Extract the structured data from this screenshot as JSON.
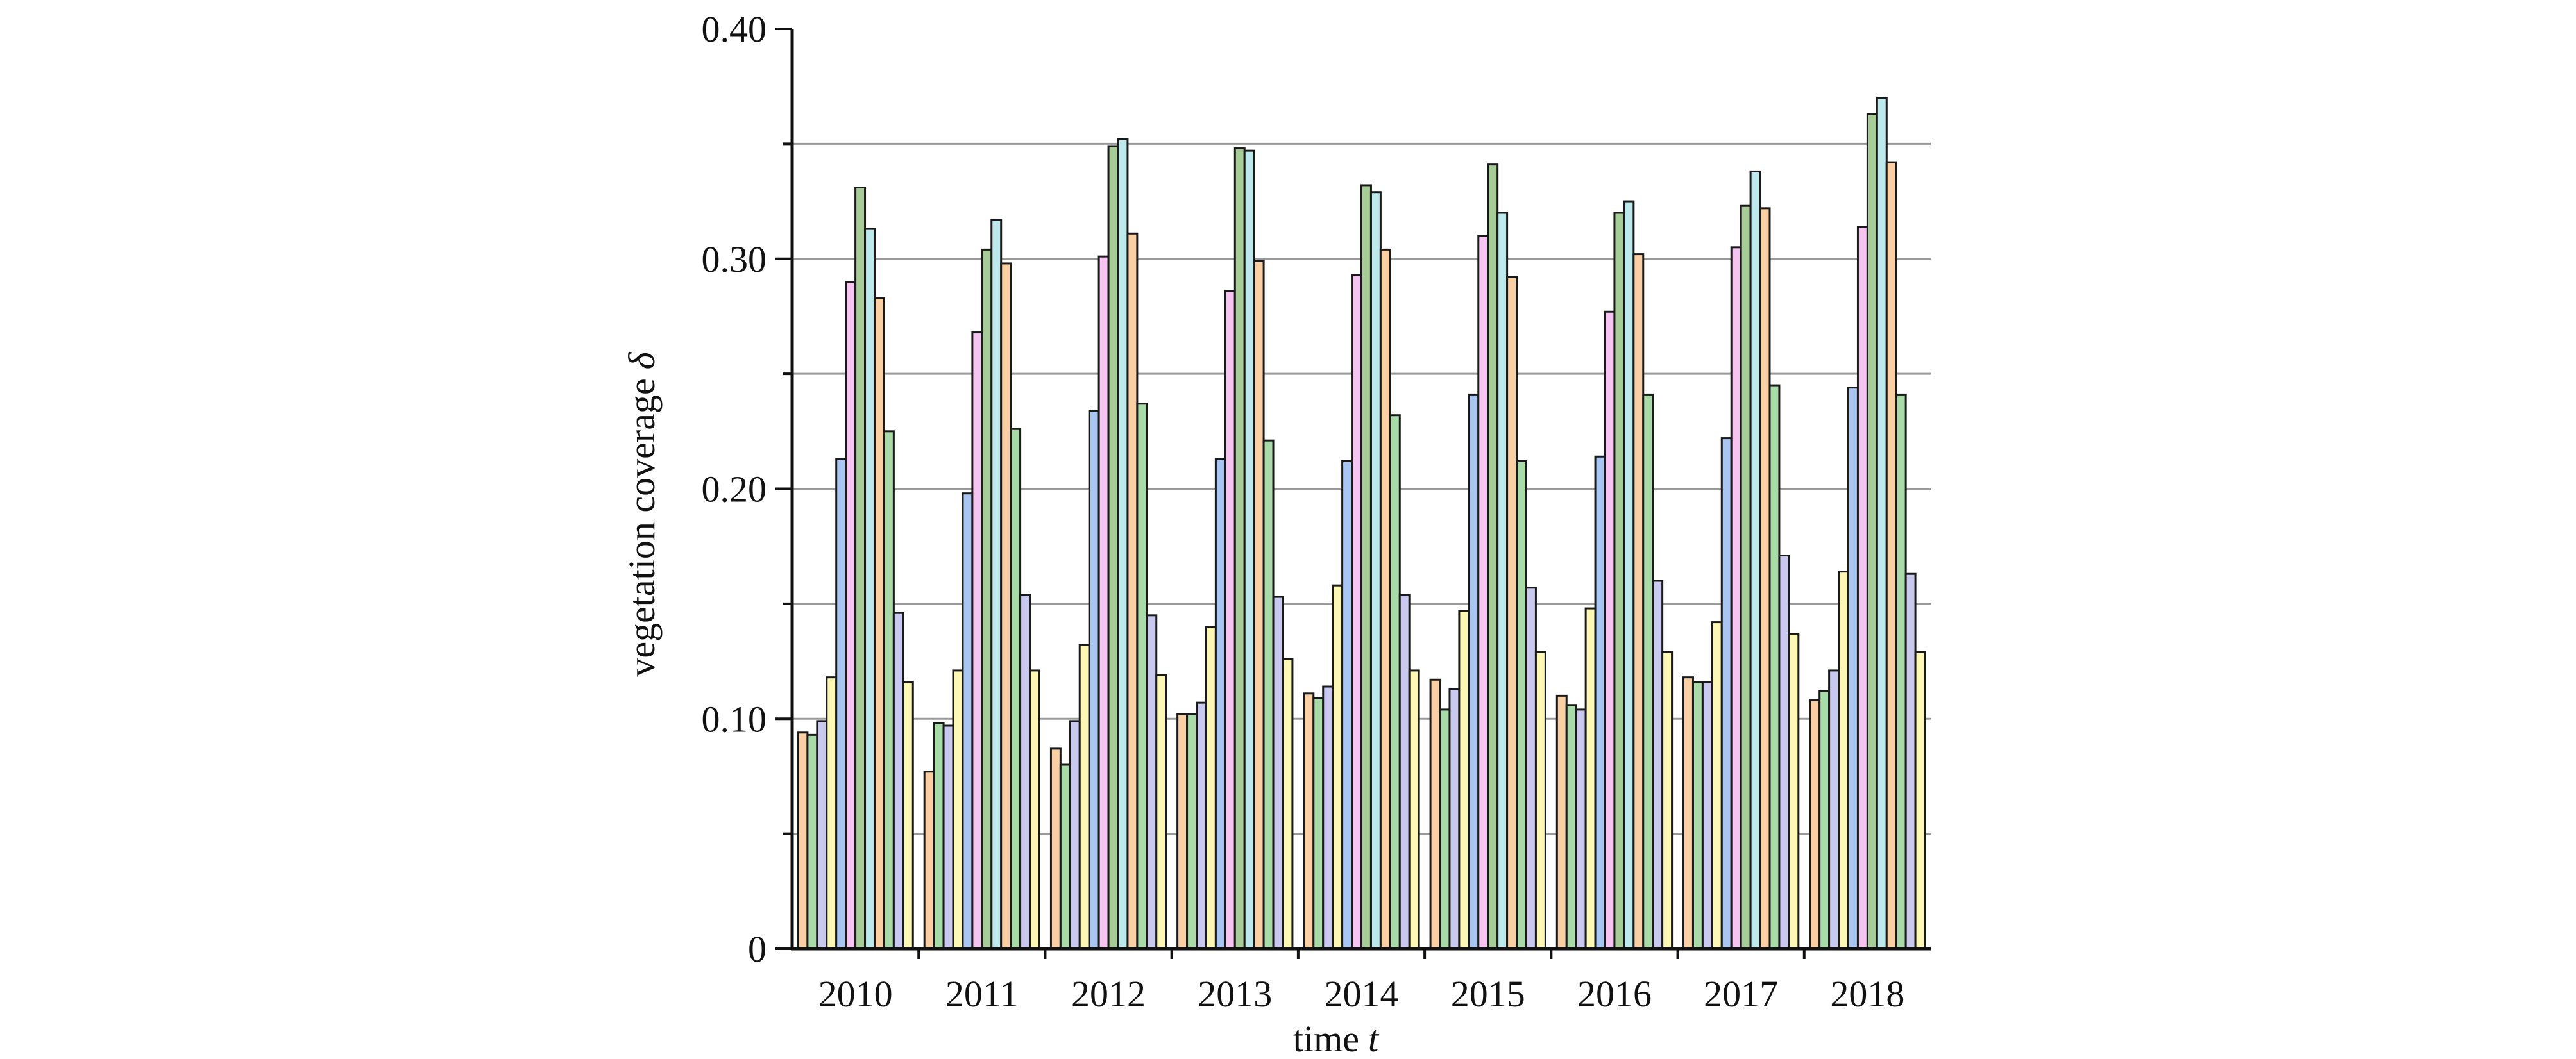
{
  "chart_data": {
    "type": "bar",
    "title": "",
    "xlabel": "time",
    "xlabel_symbol": "t",
    "ylabel": "vegetation coverage",
    "ylabel_symbol": "δ",
    "ylim": [
      0,
      0.4
    ],
    "y_ticks": [
      0,
      0.1,
      0.2,
      0.3,
      0.4
    ],
    "y_tick_labels": [
      "0",
      "0.10",
      "0.20",
      "0.30",
      "0.40"
    ],
    "grid": true,
    "grid_values": [
      0.05,
      0.1,
      0.15,
      0.2,
      0.25,
      0.3,
      0.35
    ],
    "legend": "none",
    "categories": [
      "2010",
      "2011",
      "2012",
      "2013",
      "2014",
      "2015",
      "2016",
      "2017",
      "2018"
    ],
    "bar_colors": [
      "#f9cfa3",
      "#a8dba8",
      "#c9c9f0",
      "#fdf7b5",
      "#a9c5f2",
      "#f6c4f0",
      "#a8cc98",
      "#bde9ec",
      "#f9cfa3",
      "#a8dba8",
      "#c9c9f0",
      "#fdf7b5"
    ],
    "values": [
      [
        0.094,
        0.093,
        0.099,
        0.118,
        0.213,
        0.29,
        0.331,
        0.313,
        0.283,
        0.225,
        0.146,
        0.116
      ],
      [
        0.077,
        0.098,
        0.097,
        0.121,
        0.198,
        0.268,
        0.304,
        0.317,
        0.298,
        0.226,
        0.154,
        0.121
      ],
      [
        0.087,
        0.08,
        0.099,
        0.132,
        0.234,
        0.301,
        0.349,
        0.352,
        0.311,
        0.237,
        0.145,
        0.119
      ],
      [
        0.102,
        0.102,
        0.107,
        0.14,
        0.213,
        0.286,
        0.348,
        0.347,
        0.299,
        0.221,
        0.153,
        0.126
      ],
      [
        0.111,
        0.109,
        0.114,
        0.158,
        0.212,
        0.293,
        0.332,
        0.329,
        0.304,
        0.232,
        0.154,
        0.121
      ],
      [
        0.117,
        0.104,
        0.113,
        0.147,
        0.241,
        0.31,
        0.341,
        0.32,
        0.292,
        0.212,
        0.157,
        0.129
      ],
      [
        0.11,
        0.106,
        0.104,
        0.148,
        0.214,
        0.277,
        0.32,
        0.325,
        0.302,
        0.241,
        0.16,
        0.129
      ],
      [
        0.118,
        0.116,
        0.116,
        0.142,
        0.222,
        0.305,
        0.323,
        0.338,
        0.322,
        0.245,
        0.171,
        0.137
      ],
      [
        0.108,
        0.112,
        0.121,
        0.164,
        0.244,
        0.314,
        0.363,
        0.37,
        0.342,
        0.241,
        0.163,
        0.129
      ]
    ]
  }
}
